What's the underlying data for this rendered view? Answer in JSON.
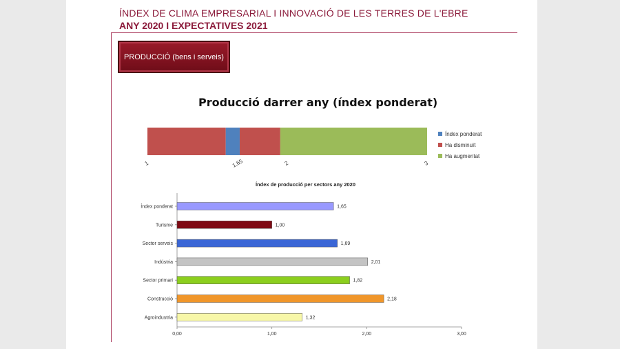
{
  "header": {
    "title_line1": "ÍNDEX DE CLIMA EMPRESARIAL I INNOVACIÓ DE LES TERRES DE L'EBRE",
    "title_line2": "ANY 2020 I EXPECTATIVES 2021",
    "section_badge": "PRODUCCIÓ (bens i serveis)"
  },
  "chart_data": [
    {
      "type": "bar",
      "orientation": "horizontal-stacked",
      "title": "Producció darrer any (índex ponderat)",
      "xlim": [
        1,
        3
      ],
      "ticks": [
        {
          "value": 1,
          "label": "1"
        },
        {
          "value": 1.65,
          "label": "1,65"
        },
        {
          "value": 2,
          "label": "2"
        },
        {
          "value": 3,
          "label": "3"
        }
      ],
      "segments": [
        {
          "series": "Ha disminuït",
          "from": 1.0,
          "to": 1.56,
          "color": "#c0504d"
        },
        {
          "series": "Índex ponderat",
          "from": 1.56,
          "to": 1.66,
          "color": "#4f81bd"
        },
        {
          "series": "Ha disminuït",
          "from": 1.66,
          "to": 1.95,
          "color": "#c0504d"
        },
        {
          "series": "Ha augmentat",
          "from": 1.95,
          "to": 3.0,
          "color": "#9bbb59"
        }
      ],
      "legend": [
        {
          "name": "Índex ponderat",
          "color": "#4f81bd"
        },
        {
          "name": "Ha disminuït",
          "color": "#c0504d"
        },
        {
          "name": "Ha augmentat",
          "color": "#9bbb59"
        }
      ],
      "legend_position": "right"
    },
    {
      "type": "bar",
      "orientation": "horizontal",
      "title": "Índex de producció per sectors any 2020",
      "categories": [
        "Índex ponderat",
        "Turisme",
        "Sector serveis",
        "Indústria",
        "Sector primari",
        "Construcció",
        "Agroindustria"
      ],
      "values": [
        1.65,
        1.0,
        1.69,
        2.01,
        1.82,
        2.18,
        1.32
      ],
      "value_labels": [
        "1,65",
        "1,00",
        "1,69",
        "2,01",
        "1,82",
        "2,18",
        "1,32"
      ],
      "colors": [
        "#9999ff",
        "#7f0a14",
        "#3a66d6",
        "#c4c4c4",
        "#8ccf1e",
        "#f0962a",
        "#f7f7a8"
      ],
      "xlim": [
        0,
        3
      ],
      "xticks": [
        "0,00",
        "1,00",
        "2,00",
        "3,00"
      ]
    }
  ]
}
